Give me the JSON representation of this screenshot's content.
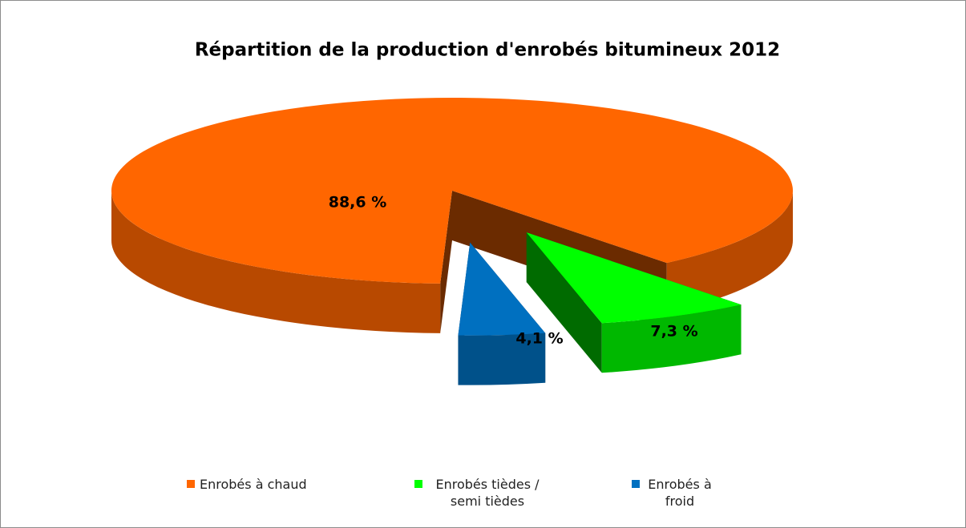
{
  "chart_data": {
    "type": "pie",
    "title": "Répartition de la production d'enrobés bitumineux 2012",
    "categories": [
      "Enrobés à chaud",
      "Enrobés tièdes / semi tièdes",
      "Enrobés à froid"
    ],
    "values": [
      88.6,
      7.3,
      4.1
    ],
    "value_labels": [
      "88,6 %",
      "7,3 %",
      "4,1 %"
    ],
    "colors": [
      "#ff6600",
      "#00ff00",
      "#0070c0"
    ]
  }
}
